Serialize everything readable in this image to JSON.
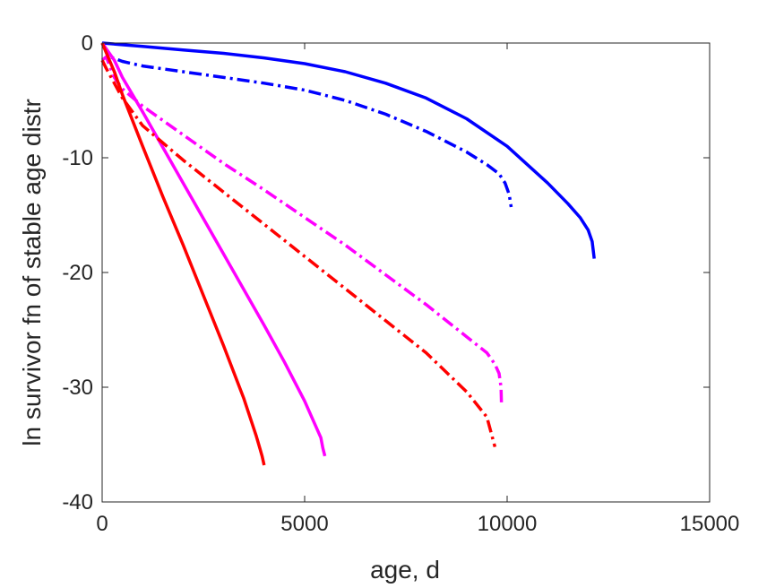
{
  "chart_data": {
    "type": "line",
    "title": "",
    "xlabel": "age, d",
    "ylabel": "ln survivor fn of stable age distr",
    "xlim": [
      0,
      15000
    ],
    "ylim": [
      -40,
      0
    ],
    "xticks": [
      0,
      5000,
      10000,
      15000
    ],
    "yticks": [
      0,
      -10,
      -20,
      -30,
      -40
    ],
    "xtick_labels": [
      "0",
      "5000",
      "10000",
      "15000"
    ],
    "ytick_labels": [
      "0",
      "-10",
      "-20",
      "-30",
      "-40"
    ],
    "grid": false,
    "legend": "none",
    "series": [
      {
        "color": "#0000ff",
        "dash": "solid",
        "x": [
          0,
          1000,
          2000,
          3000,
          4000,
          5000,
          6000,
          7000,
          8000,
          9000,
          10000,
          10500,
          11000,
          11500,
          11800,
          12000,
          12100,
          12150
        ],
        "y": [
          0,
          -0.3,
          -0.6,
          -0.9,
          -1.3,
          -1.8,
          -2.5,
          -3.5,
          -4.8,
          -6.6,
          -9.0,
          -10.6,
          -12.2,
          -14.0,
          -15.2,
          -16.3,
          -17.3,
          -18.8
        ]
      },
      {
        "color": "#0000ff",
        "dash": "dashdot",
        "x": [
          0,
          200,
          500,
          1000,
          2000,
          3000,
          4000,
          5000,
          6000,
          7000,
          8000,
          9000,
          9500,
          9800,
          9950,
          10050,
          10100
        ],
        "y": [
          0,
          -1.2,
          -1.6,
          -2.0,
          -2.5,
          -3.0,
          -3.5,
          -4.1,
          -5.0,
          -6.2,
          -7.7,
          -9.5,
          -10.6,
          -11.4,
          -12.2,
          -13.2,
          -14.3
        ]
      },
      {
        "color": "#ff00ff",
        "dash": "solid",
        "x": [
          0,
          300,
          500,
          1000,
          2000,
          3000,
          4000,
          4500,
          5000,
          5200,
          5400,
          5450,
          5500
        ],
        "y": [
          0,
          -1.5,
          -3.0,
          -6.0,
          -12.2,
          -18.4,
          -24.6,
          -27.8,
          -31.2,
          -32.8,
          -34.4,
          -35.3,
          -36.0
        ]
      },
      {
        "color": "#ff00ff",
        "dash": "dashdot",
        "x": [
          0,
          100,
          300,
          500,
          1000,
          2000,
          3000,
          4000,
          5000,
          6000,
          7000,
          8000,
          9000,
          9500,
          9700,
          9800,
          9850,
          9860
        ],
        "y": [
          -1.5,
          -1.2,
          -3.0,
          -4.0,
          -5.5,
          -8.0,
          -10.5,
          -12.8,
          -15.2,
          -17.6,
          -20.2,
          -22.8,
          -25.6,
          -27.0,
          -28.0,
          -28.8,
          -30.0,
          -31.6
        ]
      },
      {
        "color": "#ff0000",
        "dash": "solid",
        "x": [
          0,
          300,
          500,
          1000,
          1500,
          2000,
          2500,
          3000,
          3500,
          3800,
          3900,
          3950,
          4000
        ],
        "y": [
          0,
          -2.5,
          -4.5,
          -9.0,
          -13.4,
          -17.6,
          -22.0,
          -26.4,
          -31.0,
          -34.2,
          -35.4,
          -36.0,
          -36.8
        ]
      },
      {
        "color": "#ff0000",
        "dash": "dashdot",
        "x": [
          0,
          100,
          300,
          500,
          1000,
          2000,
          3000,
          4000,
          5000,
          6000,
          7000,
          8000,
          9000,
          9500,
          9700
        ],
        "y": [
          -1.5,
          -2.2,
          -3.5,
          -4.8,
          -7.2,
          -10.2,
          -13.0,
          -15.8,
          -18.6,
          -21.4,
          -24.2,
          -27.0,
          -30.4,
          -32.6,
          -35.2
        ]
      }
    ]
  }
}
